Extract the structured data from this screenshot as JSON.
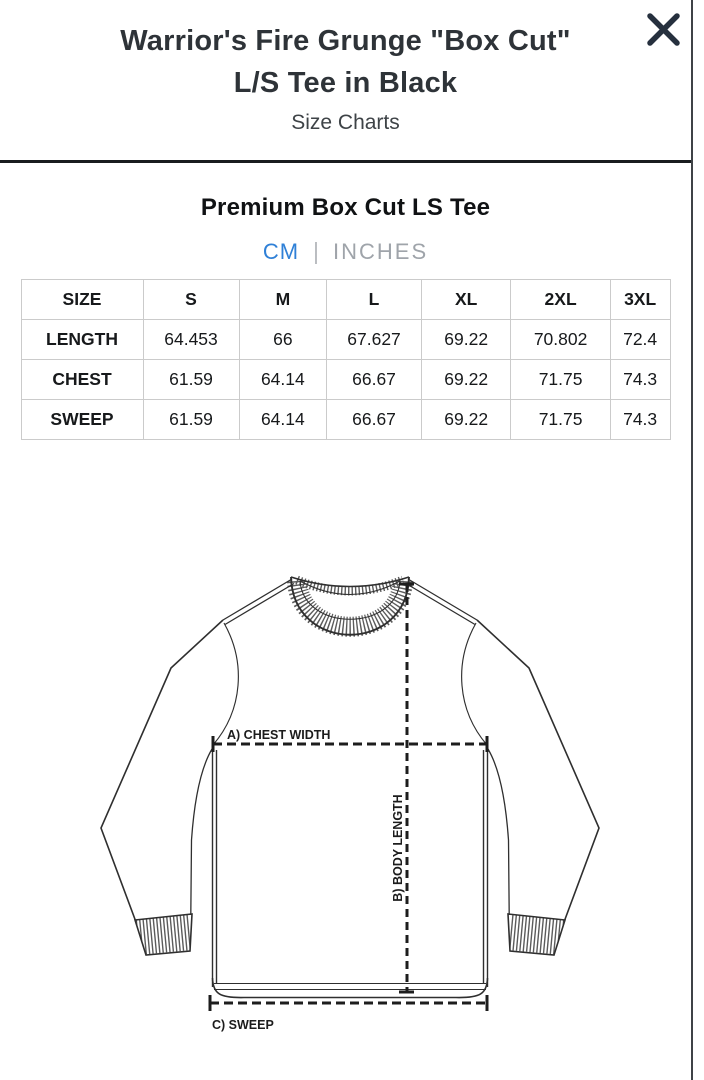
{
  "header": {
    "title_line1": "Warrior's Fire Grunge \"Box Cut\"",
    "title_line2": "L/S Tee in Black",
    "subtitle": "Size Charts",
    "close_icon": "x-close"
  },
  "chart": {
    "name": "Premium Box Cut LS Tee",
    "units": {
      "cm_label": "CM",
      "separator": "|",
      "inches_label": "INCHES",
      "selected": "CM"
    }
  },
  "size_table": {
    "columns": [
      "SIZE",
      "S",
      "M",
      "L",
      "XL",
      "2XL",
      "3XL"
    ],
    "rows": [
      {
        "label": "LENGTH",
        "values": [
          "64.453",
          "66",
          "67.627",
          "69.22",
          "70.802",
          "72.4"
        ]
      },
      {
        "label": "CHEST",
        "values": [
          "61.59",
          "64.14",
          "66.67",
          "69.22",
          "71.75",
          "74.3"
        ]
      },
      {
        "label": "SWEEP",
        "values": [
          "61.59",
          "64.14",
          "66.67",
          "69.22",
          "71.75",
          "74.3"
        ]
      }
    ]
  },
  "diagram": {
    "labels": {
      "chest": "A) CHEST WIDTH",
      "body_length": "B) BODY LENGTH",
      "sweep": "C) SWEEP"
    }
  },
  "colors": {
    "accent_blue": "#2f80d7",
    "inactive_gray": "#9fa4aa",
    "divider_dark": "#191c1f",
    "table_border": "#cbcbcb",
    "title_text": "#2e3338",
    "line_art": "#2f2f2f"
  }
}
